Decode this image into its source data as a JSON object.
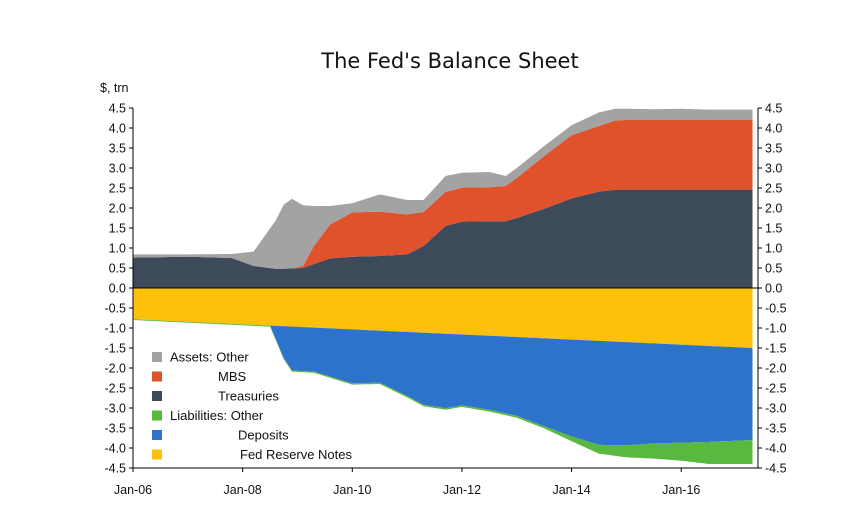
{
  "chart_data": {
    "type": "area",
    "title": "The Fed's Balance Sheet",
    "ylabel": "$, trn",
    "xlabel": "",
    "ylim": [
      -4.5,
      4.5
    ],
    "yticks": [
      "4.5",
      "4.0",
      "3.5",
      "3.0",
      "2.5",
      "2.0",
      "1.5",
      "1.0",
      "0.5",
      "0.0",
      "-0.5",
      "-1.0",
      "-1.5",
      "-2.0",
      "-2.5",
      "-3.0",
      "-3.5",
      "-4.0",
      "-4.5"
    ],
    "xlim": [
      2006.0,
      2017.4
    ],
    "xticks": [
      {
        "label": "Jan-06",
        "value": 2006.0
      },
      {
        "label": "Jan-08",
        "value": 2008.0
      },
      {
        "label": "Jan-10",
        "value": 2010.0
      },
      {
        "label": "Jan-12",
        "value": 2012.0
      },
      {
        "label": "Jan-14",
        "value": 2014.0
      },
      {
        "label": "Jan-16",
        "value": 2016.0
      }
    ],
    "grid": false,
    "legend_position": "bottom-left",
    "assets_x": [
      2006.0,
      2007.0,
      2007.8,
      2008.2,
      2008.6,
      2008.75,
      2008.9,
      2009.1,
      2009.3,
      2009.6,
      2010.0,
      2010.5,
      2011.0,
      2011.3,
      2011.7,
      2012.0,
      2012.5,
      2012.8,
      2013.0,
      2013.5,
      2014.0,
      2014.5,
      2014.8,
      2015.0,
      2015.5,
      2016.0,
      2016.5,
      2017.3
    ],
    "series": [
      {
        "name": "Treasuries",
        "color": "#3c4a5a",
        "group": "assets",
        "values": [
          0.76,
          0.78,
          0.75,
          0.55,
          0.48,
          0.48,
          0.49,
          0.5,
          0.6,
          0.74,
          0.78,
          0.8,
          0.84,
          1.05,
          1.55,
          1.66,
          1.67,
          1.67,
          1.75,
          1.98,
          2.24,
          2.41,
          2.46,
          2.46,
          2.46,
          2.46,
          2.46,
          2.46
        ]
      },
      {
        "name": "MBS",
        "color": "#e0522b",
        "group": "assets",
        "values": [
          0.0,
          0.0,
          0.0,
          0.0,
          0.0,
          0.0,
          0.0,
          0.05,
          0.45,
          0.85,
          1.11,
          1.11,
          1.0,
          0.85,
          0.85,
          0.85,
          0.85,
          0.88,
          1.0,
          1.32,
          1.58,
          1.64,
          1.73,
          1.74,
          1.74,
          1.74,
          1.74,
          1.74
        ]
      },
      {
        "name": "Assets: Other",
        "color": "#a3a3a3",
        "group": "assets",
        "values": [
          0.08,
          0.06,
          0.1,
          0.36,
          1.2,
          1.6,
          1.74,
          1.52,
          1.0,
          0.46,
          0.23,
          0.43,
          0.36,
          0.3,
          0.4,
          0.37,
          0.38,
          0.25,
          0.25,
          0.25,
          0.25,
          0.34,
          0.29,
          0.28,
          0.27,
          0.28,
          0.26,
          0.26
        ]
      },
      {
        "name": "Fed Reserve Notes",
        "color": "#fec008",
        "group": "liabilities",
        "x": [
          2006.0,
          2017.3
        ],
        "values": [
          -0.78,
          -1.5
        ]
      },
      {
        "name": "Deposits",
        "color": "#2e73cb",
        "group": "liabilities",
        "x": [
          2006.0,
          2008.0,
          2008.5,
          2008.75,
          2008.9,
          2009.3,
          2010.0,
          2010.5,
          2011.0,
          2011.3,
          2011.7,
          2012.0,
          2012.5,
          2013.0,
          2013.5,
          2014.0,
          2014.5,
          2015.0,
          2015.5,
          2016.0,
          2016.5,
          2017.3
        ],
        "values": [
          0.0,
          0.0,
          0.0,
          -0.8,
          -1.1,
          -1.1,
          -1.35,
          -1.3,
          -1.6,
          -1.8,
          -1.86,
          -1.77,
          -1.85,
          -1.97,
          -2.2,
          -2.42,
          -2.6,
          -2.58,
          -2.5,
          -2.45,
          -2.4,
          -2.3
        ]
      },
      {
        "name": "Liabilities: Other",
        "color": "#58b83f",
        "group": "liabilities",
        "x": [
          2006.0,
          2010.0,
          2013.5,
          2014.0,
          2014.5,
          2015.0,
          2015.5,
          2016.0,
          2016.5,
          2017.3
        ],
        "values": [
          -0.02,
          -0.03,
          -0.05,
          -0.12,
          -0.22,
          -0.3,
          -0.38,
          -0.45,
          -0.55,
          -0.6
        ]
      }
    ]
  },
  "legend": {
    "items": [
      {
        "label": "Assets: Other",
        "color": "#a3a3a3"
      },
      {
        "label": "MBS",
        "color": "#e0522b"
      },
      {
        "label": "Treasuries",
        "color": "#3c4a5a"
      },
      {
        "label": "Liabilities: Other",
        "color": "#58b83f"
      },
      {
        "label": "Deposits",
        "color": "#2e73cb"
      },
      {
        "label": "Fed Reserve Notes",
        "color": "#fec008"
      }
    ]
  }
}
